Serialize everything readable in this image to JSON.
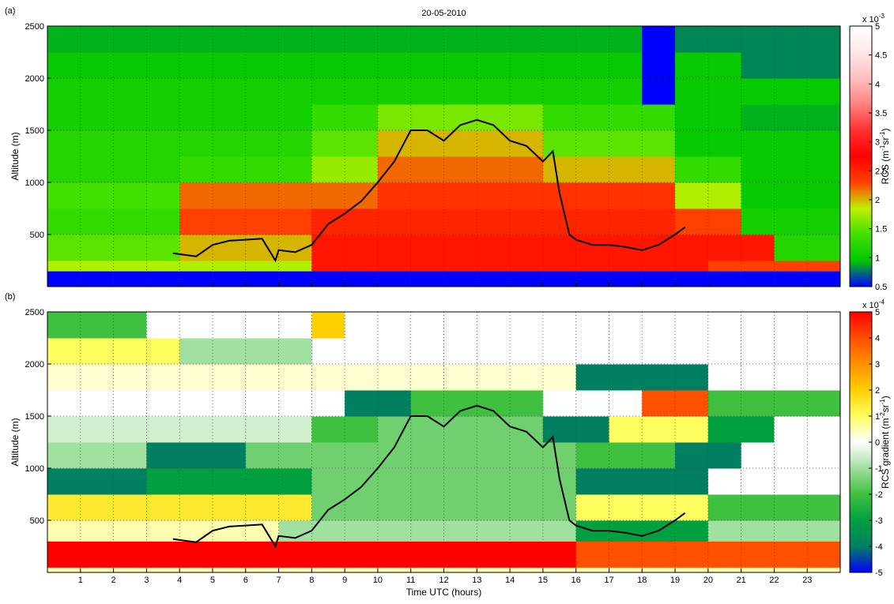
{
  "chart_data": [
    {
      "type": "heatmap",
      "panel_label": "(a)",
      "title": "20-05-2010",
      "ylabel": "Altitude (m)",
      "xlim": [
        0,
        24
      ],
      "xticks": [
        1,
        2,
        3,
        4,
        5,
        6,
        7,
        8,
        9,
        10,
        11,
        12,
        13,
        14,
        15,
        16,
        17,
        18,
        19,
        20,
        21,
        22,
        23
      ],
      "xticklabels": false,
      "ylim": [
        0,
        2500
      ],
      "yticks": [
        500,
        1000,
        1500,
        2000,
        2500
      ],
      "grid": true,
      "xbins": [
        0,
        1,
        2,
        3,
        4,
        5,
        6,
        7,
        8,
        9,
        10,
        11,
        12,
        13,
        14,
        15,
        16,
        17,
        18,
        19,
        20,
        21,
        22,
        23,
        24
      ],
      "ybins": [
        0,
        150,
        250,
        500,
        750,
        1000,
        1250,
        1500,
        1750,
        2000,
        2250,
        2500
      ],
      "z": [
        [
          0.5,
          0.5,
          0.5,
          0.5,
          0.5,
          0.5,
          0.5,
          0.5,
          0.5,
          0.5,
          0.5,
          0.5,
          0.5,
          0.5,
          0.5,
          0.5,
          0.5,
          0.5,
          0.5,
          0.5,
          0.5,
          0.5,
          0.5,
          0.5
        ],
        [
          1.8,
          1.8,
          1.8,
          1.8,
          1.8,
          1.8,
          1.8,
          1.8,
          2.6,
          2.6,
          2.6,
          2.6,
          2.6,
          2.6,
          2.6,
          2.6,
          2.6,
          2.6,
          2.6,
          2.6,
          2.3,
          2.3,
          2.3,
          2.3
        ],
        [
          1.5,
          1.5,
          1.5,
          1.5,
          2.0,
          2.0,
          2.0,
          2.0,
          2.6,
          2.6,
          2.6,
          2.6,
          2.6,
          2.6,
          2.6,
          2.6,
          2.6,
          2.6,
          2.6,
          2.6,
          2.6,
          2.6,
          1.2,
          1.2
        ],
        [
          1.3,
          1.3,
          1.3,
          1.3,
          2.3,
          2.3,
          2.3,
          2.3,
          2.5,
          2.5,
          2.5,
          2.5,
          2.5,
          2.5,
          2.5,
          2.5,
          2.5,
          2.5,
          2.5,
          2.3,
          2.3,
          1.1,
          1.1,
          1.1
        ],
        [
          1.4,
          1.4,
          1.4,
          1.4,
          2.2,
          2.2,
          2.2,
          2.2,
          2.2,
          2.2,
          2.4,
          2.4,
          2.4,
          2.4,
          2.4,
          2.4,
          2.4,
          2.4,
          2.4,
          1.8,
          1.8,
          1.0,
          1.0,
          1.0
        ],
        [
          1.2,
          1.2,
          1.2,
          1.2,
          1.3,
          1.3,
          1.3,
          1.3,
          1.7,
          1.7,
          2.2,
          2.2,
          2.2,
          2.2,
          2.2,
          2.0,
          2.0,
          2.0,
          2.0,
          1.3,
          1.3,
          1.0,
          1.0,
          1.0
        ],
        [
          1.2,
          1.2,
          1.2,
          1.2,
          1.2,
          1.2,
          1.2,
          1.2,
          1.5,
          1.5,
          2.0,
          2.0,
          2.0,
          2.0,
          2.0,
          1.5,
          1.5,
          1.5,
          1.5,
          1.0,
          1.0,
          1.0,
          1.0,
          1.0
        ],
        [
          1.1,
          1.1,
          1.1,
          1.1,
          1.1,
          1.1,
          1.1,
          1.1,
          1.3,
          1.3,
          1.6,
          1.6,
          1.6,
          1.6,
          1.6,
          1.3,
          1.3,
          1.3,
          1.3,
          1.0,
          1.0,
          0.9,
          0.9,
          0.9
        ],
        [
          1.1,
          1.1,
          1.1,
          1.1,
          1.1,
          1.1,
          1.1,
          1.1,
          1.1,
          1.1,
          1.1,
          1.1,
          1.1,
          1.1,
          1.1,
          1.1,
          1.1,
          1.1,
          0.5,
          1.0,
          1.0,
          1.0,
          1.0,
          1.0
        ],
        [
          1.0,
          1.0,
          1.0,
          1.0,
          1.0,
          1.0,
          1.0,
          1.0,
          1.0,
          1.0,
          1.0,
          1.0,
          1.0,
          1.0,
          1.0,
          1.0,
          1.0,
          1.0,
          0.5,
          1.0,
          1.0,
          0.8,
          0.8,
          0.8
        ],
        [
          0.9,
          0.9,
          0.9,
          0.9,
          0.9,
          0.9,
          0.9,
          0.9,
          0.9,
          0.9,
          0.9,
          0.9,
          0.9,
          0.9,
          0.9,
          0.9,
          0.9,
          0.9,
          0.5,
          0.8,
          0.8,
          0.8,
          0.8,
          0.8
        ]
      ],
      "colorscale": [
        "#0000ff",
        "#00c800",
        "#40e000",
        "#c0f000",
        "#ff4000",
        "#ff0000",
        "#ff3030",
        "#ff8080",
        "#ffc0c0",
        "#ffe8e8",
        "#ffffff"
      ],
      "clim": [
        0.5,
        5
      ],
      "cticks": [
        0.5,
        1,
        1.5,
        2,
        2.5,
        3,
        3.5,
        4,
        4.5,
        5
      ],
      "colorbar_exponent": [
        "x 10",
        "-3"
      ],
      "colorbar_label": [
        "RCS  (m",
        "-1",
        "sr",
        "-1",
        ")"
      ],
      "line": {
        "color": "#000000",
        "x": [
          3.8,
          4.5,
          5,
          5.5,
          6,
          6.5,
          6.9,
          7,
          7.5,
          8,
          8.5,
          9,
          9.5,
          10,
          10.5,
          11,
          11.5,
          12,
          12.5,
          13,
          13.5,
          14,
          14.5,
          15,
          15.3,
          15.5,
          15.8,
          16,
          16.5,
          17,
          17.5,
          18,
          18.5,
          19,
          19.3
        ],
        "values": [
          320,
          290,
          400,
          440,
          450,
          460,
          250,
          350,
          330,
          400,
          600,
          700,
          820,
          1000,
          1200,
          1500,
          1500,
          1400,
          1550,
          1600,
          1550,
          1400,
          1350,
          1200,
          1300,
          900,
          500,
          450,
          400,
          400,
          380,
          350,
          400,
          500,
          570
        ]
      }
    },
    {
      "type": "heatmap",
      "panel_label": "(b)",
      "ylabel": "Altitude (m)",
      "xlabel": "Time UTC (hours)",
      "xlim": [
        0,
        24
      ],
      "xticks": [
        1,
        2,
        3,
        4,
        5,
        6,
        7,
        8,
        9,
        10,
        11,
        12,
        13,
        14,
        15,
        16,
        17,
        18,
        19,
        20,
        21,
        22,
        23
      ],
      "xticklabels": true,
      "ylim": [
        0,
        2500
      ],
      "yticks": [
        500,
        1000,
        1500,
        2000,
        2500
      ],
      "grid": true,
      "xbins": [
        0,
        1,
        2,
        3,
        4,
        5,
        6,
        7,
        8,
        9,
        10,
        11,
        12,
        13,
        14,
        15,
        16,
        17,
        18,
        19,
        20,
        21,
        22,
        23,
        24
      ],
      "ybins": [
        0,
        50,
        300,
        500,
        750,
        1000,
        1250,
        1500,
        1750,
        2000,
        2250,
        2500
      ],
      "z": [
        [
          0.5,
          0.5,
          0.5,
          0.5,
          0.5,
          0.5,
          0.5,
          0.5,
          0.5,
          0.5,
          0.5,
          0.5,
          0.5,
          0.5,
          0.5,
          0.5,
          0.5,
          0.5,
          0.5,
          0.5,
          0.5,
          0.5,
          0.5,
          0.5
        ],
        [
          5,
          5,
          5,
          5,
          5,
          5,
          5,
          5,
          5,
          5,
          5,
          5,
          5,
          5,
          5,
          5,
          4,
          4,
          4,
          4,
          4,
          4,
          4,
          4
        ],
        [
          0.5,
          0.5,
          0.5,
          0.5,
          0.5,
          0.5,
          0.5,
          -1,
          -1,
          -1,
          -1,
          -1,
          -1,
          -1,
          -1,
          -1,
          -3,
          -3,
          -3,
          -3,
          -1,
          -1,
          -1,
          -1
        ],
        [
          1.5,
          1.5,
          1.5,
          1.5,
          1.5,
          1.5,
          1.5,
          1.5,
          -1.5,
          -1.5,
          -1.5,
          -1.5,
          -1.5,
          -1.5,
          -1.5,
          -1.5,
          1,
          1,
          1,
          1,
          -2,
          -2,
          -2,
          -2
        ],
        [
          -4,
          -4,
          -4,
          -3,
          -3,
          -3,
          -3,
          -3,
          -1.5,
          -1.5,
          -1.5,
          -1.5,
          -1.5,
          -1.5,
          -1.5,
          -1.5,
          -4,
          -4,
          -4,
          -4,
          0,
          0,
          0,
          0
        ],
        [
          -1,
          -1,
          -1,
          -4,
          -4,
          -4,
          -1.5,
          -1.5,
          -1.5,
          -1.5,
          -1.5,
          -1.5,
          -1.5,
          -1.5,
          -1.5,
          -1.5,
          -2,
          -2,
          -2,
          -4,
          -4,
          0,
          0,
          0
        ],
        [
          -0.5,
          -0.5,
          -0.5,
          -0.5,
          -0.5,
          -0.5,
          -0.5,
          -0.5,
          -2,
          -2,
          -1.5,
          -1.5,
          -1.5,
          -1.5,
          -1.5,
          -4,
          -4,
          1,
          1,
          1,
          -3,
          -3,
          0,
          0
        ],
        [
          0,
          0,
          0,
          0,
          0,
          0,
          0,
          0,
          0,
          -4,
          -4,
          -2,
          -2,
          -2,
          -2,
          0,
          0,
          0,
          4,
          4,
          -2,
          -2,
          -2,
          -2
        ],
        [
          0.3,
          0.3,
          0.3,
          0.3,
          0.3,
          0.3,
          0.3,
          0.3,
          0.3,
          0.3,
          0.3,
          0.3,
          0.3,
          0.3,
          0.3,
          0.3,
          -4,
          -4,
          -4,
          -4,
          0,
          0,
          0,
          0
        ],
        [
          1,
          1,
          1,
          1,
          -1,
          -1,
          -1,
          -1,
          0,
          0,
          0,
          0,
          0,
          0,
          0,
          0,
          0,
          0,
          0,
          0,
          0,
          0,
          0,
          0
        ],
        [
          -2,
          -2,
          -2,
          0,
          0,
          0,
          0,
          0,
          2,
          0,
          0,
          0,
          0,
          0,
          0,
          0,
          0,
          0,
          0,
          0,
          0,
          0,
          0,
          0
        ]
      ],
      "colorscale": [
        "#0000ff",
        "#008060",
        "#00a040",
        "#40c040",
        "#a0e0a0",
        "#ffffff",
        "#ffff60",
        "#ffd000",
        "#ff9000",
        "#ff5000",
        "#ff0000"
      ],
      "clim": [
        -5,
        5
      ],
      "cticks": [
        -5,
        -4,
        -3,
        -2,
        -1,
        0,
        1,
        2,
        3,
        4,
        5
      ],
      "colorbar_exponent": [
        "x 10",
        "-4"
      ],
      "colorbar_label": [
        "RCS gradient  (m",
        "-2",
        "sr",
        "-1",
        ")"
      ],
      "line": {
        "color": "#000000",
        "x": [
          3.8,
          4.5,
          5,
          5.5,
          6,
          6.5,
          6.9,
          7,
          7.5,
          8,
          8.5,
          9,
          9.5,
          10,
          10.5,
          11,
          11.5,
          12,
          12.5,
          13,
          13.5,
          14,
          14.5,
          15,
          15.3,
          15.5,
          15.8,
          16,
          16.5,
          17,
          17.5,
          18,
          18.5,
          19,
          19.3
        ],
        "values": [
          320,
          290,
          400,
          440,
          450,
          460,
          250,
          350,
          330,
          400,
          600,
          700,
          820,
          1000,
          1200,
          1500,
          1500,
          1400,
          1550,
          1600,
          1550,
          1400,
          1350,
          1200,
          1300,
          900,
          500,
          450,
          400,
          400,
          380,
          350,
          400,
          500,
          570
        ]
      }
    }
  ]
}
